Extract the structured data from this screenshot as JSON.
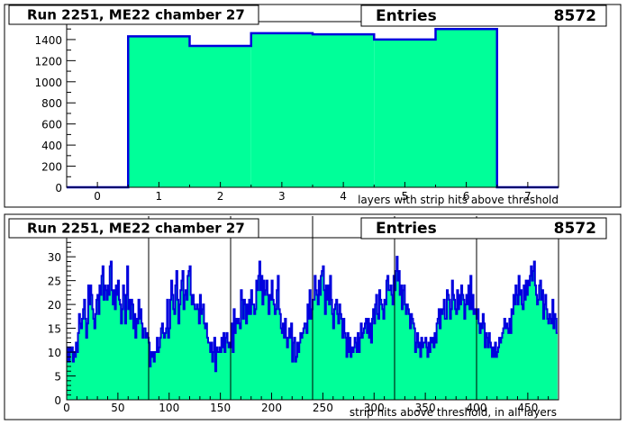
{
  "colors": {
    "fill": "#00ff99",
    "line": "#0000dd",
    "frame": "#000000",
    "pad_bg": "#ffffff"
  },
  "panels": [
    {
      "title": "Run 2251, ME22 chamber 27",
      "stats_label": "Entries",
      "stats_value": "8572",
      "xlabel": "layers with strip hits above threshold"
    },
    {
      "title": "Run 2251, ME22 chamber 27",
      "stats_label": "Entries",
      "stats_value": "8572",
      "xlabel": "strip hits above threshold, in all layers"
    }
  ],
  "chart_data": [
    {
      "type": "bar",
      "title": "Run 2251, ME22 chamber 27",
      "xlabel": "layers with strip hits above threshold",
      "ylabel": "",
      "x_bin_edges": [
        -0.5,
        0.5,
        1.5,
        2.5,
        3.5,
        4.5,
        5.5,
        6.5,
        7.5
      ],
      "categories": [
        0,
        1,
        2,
        3,
        4,
        5,
        6,
        7
      ],
      "values": [
        0,
        1430,
        1340,
        1460,
        1450,
        1400,
        1500,
        0
      ],
      "xlim": [
        -0.5,
        7.5
      ],
      "ylim": [
        0,
        1570
      ],
      "x_ticks": [
        0,
        1,
        2,
        3,
        4,
        5,
        6,
        7
      ],
      "y_ticks": [
        0,
        200,
        400,
        600,
        800,
        1000,
        1200,
        1400
      ],
      "entries": 8572
    },
    {
      "type": "area",
      "title": "Run 2251, ME22 chamber 27",
      "xlabel": "strip hits above threshold, in all layers",
      "ylabel": "",
      "x_start": 0,
      "bin_width": 1,
      "values": [
        8,
        11,
        8,
        11,
        10,
        11,
        8,
        10,
        9,
        12,
        10,
        14,
        18,
        16,
        15,
        17,
        19,
        21,
        17,
        13,
        16,
        24,
        20,
        24,
        22,
        19,
        17,
        15,
        18,
        21,
        22,
        18,
        24,
        22,
        26,
        28,
        21,
        24,
        23,
        21,
        24,
        22,
        28,
        29,
        23,
        20,
        23,
        19,
        24,
        22,
        25,
        21,
        20,
        16,
        19,
        24,
        22,
        16,
        22,
        28,
        19,
        21,
        17,
        21,
        20,
        15,
        18,
        13,
        17,
        16,
        21,
        17,
        19,
        16,
        13,
        15,
        15,
        13,
        14,
        13,
        12,
        7,
        10,
        9,
        10,
        8,
        10,
        10,
        13,
        10,
        11,
        13,
        15,
        16,
        14,
        13,
        14,
        15,
        21,
        13,
        15,
        21,
        25,
        22,
        19,
        18,
        24,
        27,
        21,
        16,
        20,
        23,
        25,
        27,
        19,
        22,
        23,
        21,
        26,
        27,
        28,
        22,
        20,
        22,
        20,
        19,
        19,
        20,
        19,
        16,
        22,
        18,
        19,
        20,
        16,
        15,
        16,
        13,
        12,
        12,
        10,
        12,
        8,
        10,
        13,
        6,
        11,
        10,
        10,
        11,
        10,
        13,
        11,
        14,
        10,
        13,
        14,
        12,
        11,
        12,
        11,
        16,
        10,
        19,
        14,
        17,
        16,
        17,
        16,
        15,
        23,
        21,
        17,
        21,
        20,
        16,
        20,
        18,
        21,
        18,
        23,
        20,
        20,
        18,
        19,
        25,
        23,
        26,
        29,
        23,
        26,
        20,
        25,
        22,
        23,
        25,
        22,
        18,
        22,
        21,
        25,
        21,
        20,
        18,
        19,
        23,
        26,
        19,
        18,
        15,
        14,
        16,
        13,
        17,
        13,
        11,
        13,
        15,
        13,
        16,
        8,
        12,
        13,
        8,
        9,
        12,
        10,
        12,
        14,
        13,
        14,
        15,
        16,
        16,
        14,
        20,
        17,
        23,
        17,
        19,
        21,
        21,
        26,
        23,
        22,
        20,
        25,
        22,
        26,
        27,
        28,
        23,
        18,
        24,
        21,
        24,
        20,
        26,
        21,
        18,
        15,
        19,
        20,
        21,
        18,
        16,
        20,
        18,
        17,
        13,
        17,
        14,
        13,
        9,
        14,
        10,
        13,
        9,
        11,
        10,
        11,
        13,
        12,
        10,
        14,
        10,
        13,
        16,
        13,
        14,
        15,
        16,
        17,
        14,
        17,
        13,
        16,
        12,
        17,
        19,
        16,
        20,
        22,
        18,
        17,
        23,
        21,
        20,
        19,
        17,
        21,
        20,
        25,
        26,
        23,
        23,
        24,
        22,
        20,
        26,
        23,
        27,
        30,
        25,
        27,
        22,
        24,
        19,
        23,
        24,
        20,
        18,
        20,
        19,
        18,
        15,
        18,
        17,
        16,
        15,
        10,
        12,
        14,
        11,
        12,
        9,
        13,
        11,
        12,
        12,
        13,
        11,
        9,
        12,
        10,
        13,
        12,
        13,
        11,
        14,
        12,
        16,
        17,
        19,
        15,
        19,
        18,
        19,
        21,
        17,
        17,
        23,
        22,
        21,
        17,
        19,
        25,
        22,
        21,
        19,
        18,
        23,
        19,
        22,
        20,
        24,
        22,
        21,
        17,
        20,
        22,
        20,
        24,
        19,
        26,
        19,
        22,
        18,
        19,
        18,
        17,
        19,
        16,
        14,
        16,
        15,
        18,
        16,
        11,
        14,
        13,
        11,
        14,
        12,
        11,
        9,
        11,
        9,
        12,
        9,
        10,
        11,
        13,
        12,
        13,
        14,
        15,
        17,
        15,
        16,
        15,
        14,
        17,
        14,
        19,
        18,
        22,
        20,
        24,
        22,
        20,
        26,
        22,
        23,
        20,
        19,
        24,
        21,
        25,
        22,
        25,
        24,
        26,
        28,
        25,
        27,
        29,
        24,
        22,
        20,
        21,
        24,
        25,
        21,
        23,
        17,
        20,
        22,
        19,
        17,
        16,
        18,
        17,
        16,
        21,
        15,
        18,
        17,
        14
      ],
      "xlim": [
        0,
        480
      ],
      "ylim": [
        0,
        34
      ],
      "x_ticks": [
        0,
        50,
        100,
        150,
        200,
        250,
        300,
        350,
        400,
        450
      ],
      "y_ticks": [
        0,
        5,
        10,
        15,
        20,
        25,
        30
      ],
      "separators": [
        80,
        160,
        240,
        320,
        400
      ],
      "entries": 8572
    }
  ]
}
